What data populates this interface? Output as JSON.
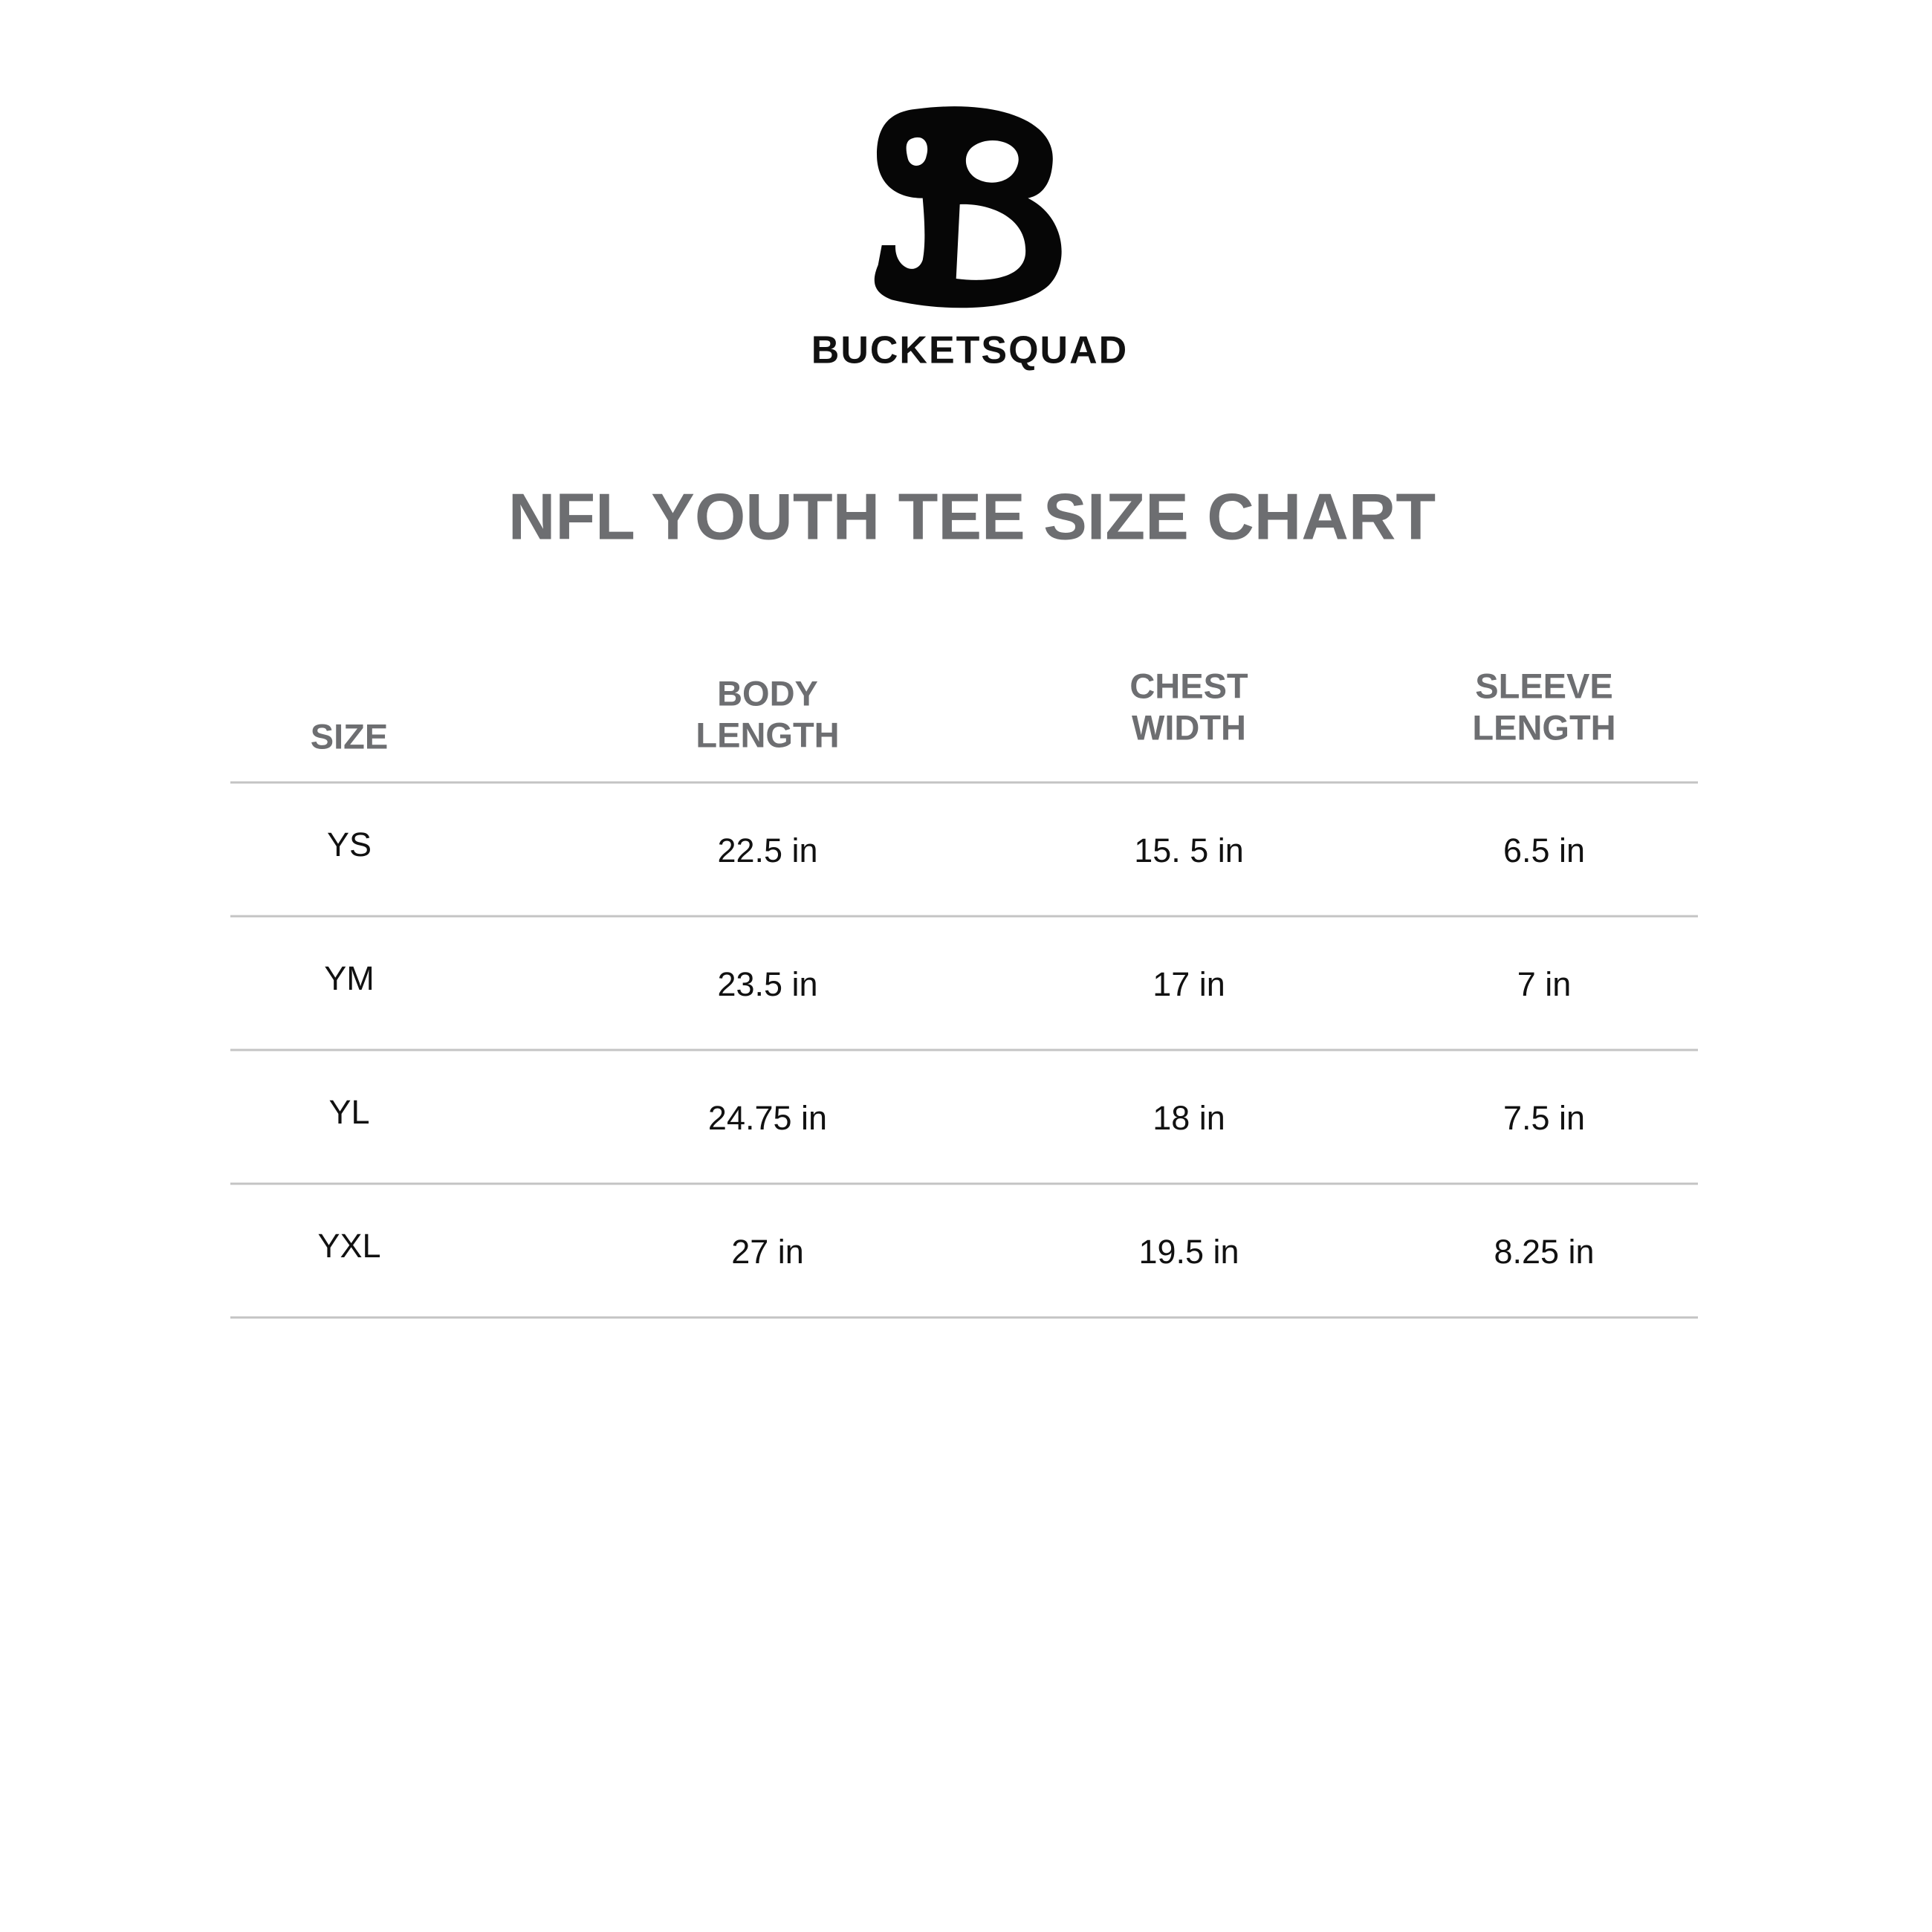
{
  "brand": "BUCKETSQUAD",
  "title": "NFL YOUTH TEE SIZE CHART",
  "table": {
    "headers": [
      [
        "SIZE"
      ],
      [
        "BODY",
        "LENGTH"
      ],
      [
        "CHEST",
        "WIDTH"
      ],
      [
        "SLEEVE",
        "LENGTH"
      ]
    ],
    "rows": [
      [
        "YS",
        "22.5 in",
        "15. 5 in",
        "6.5 in"
      ],
      [
        "YM",
        "23.5 in",
        "17 in",
        "7 in"
      ],
      [
        "YL",
        "24.75 in",
        "18 in",
        "7.5 in"
      ],
      [
        "YXL",
        "27 in",
        "19.5 in",
        "8.25 in"
      ]
    ]
  }
}
